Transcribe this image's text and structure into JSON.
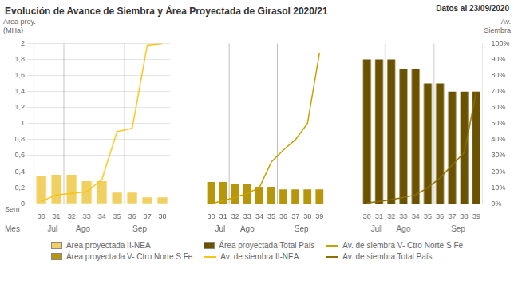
{
  "chart_data": [
    {
      "type": "bar",
      "title": "Evolución de Avance de Siembra y Área Proyectada de Girasol 2020/21",
      "subtitle": "Datos al 23/09/2020",
      "ylabel": "Área proy.\n(MHa)",
      "xlabel": "Sem",
      "categories": [
        30,
        31,
        32,
        33,
        34,
        35,
        36,
        37,
        38
      ],
      "series": [
        {
          "name": "Área proyectada II-NEA",
          "type": "bar",
          "color": "#f0d060",
          "values": [
            0.35,
            0.36,
            0.36,
            0.28,
            0.28,
            0.14,
            0.14,
            0.08,
            0.08
          ]
        },
        {
          "name": "Av. de siembra II-NEA",
          "type": "line",
          "color": "#f5c518",
          "values": [
            0.03,
            0.11,
            0.13,
            0.15,
            0.3,
            0.9,
            0.94,
            1.98,
            2.0
          ]
        }
      ],
      "ylim": [
        0,
        2.0
      ],
      "yticks": [
        0,
        {
          "value": 0.2,
          "label": "0,2"
        },
        {
          "value": 0.4,
          "label": "0,4"
        },
        {
          "value": 0.6,
          "label": "0,6"
        },
        {
          "value": 0.8,
          "label": "0,8"
        },
        1,
        {
          "value": 1.2,
          "label": "1,2"
        },
        {
          "value": 1.4,
          "label": "1,4"
        },
        {
          "value": 1.6,
          "label": "1,6"
        },
        {
          "value": 1.8,
          "label": "1,8"
        },
        2
      ],
      "grid": true,
      "legend": "bottom",
      "annotations": [
        {
          "text": "Mes"
        },
        {
          "text": "Jul",
          "x": 0.75
        },
        {
          "text": "Ago",
          "x": 2.75
        },
        {
          "text": "Sep",
          "x": 6.5
        },
        {
          "x": 1.5
        },
        {
          "x": 5.5
        }
      ]
    },
    {
      "type": "bar",
      "categories": [
        30,
        31,
        32,
        33,
        34,
        35,
        36,
        37,
        38,
        39
      ],
      "series": [
        {
          "name": "Área proyectada V- Ctro Norte S Fe",
          "type": "bar",
          "color": "#b8960c",
          "values": [
            0.27,
            0.27,
            0.25,
            0.25,
            0.21,
            0.21,
            0.18,
            0.18,
            0.18,
            0.18
          ]
        },
        {
          "name": "Av. de siembra V- Ctro Norte S Fe",
          "type": "line",
          "color": "#c8a000",
          "values": [
            0.0,
            0.04,
            0.08,
            0.13,
            0.2,
            0.52,
            0.67,
            0.8,
            1.0,
            1.88
          ]
        }
      ],
      "ylim": [
        0,
        2.0
      ],
      "grid": false,
      "tick_labels": "x",
      "annotations": [
        {
          "text": "Jul",
          "x": 0.75
        },
        {
          "text": "Ago",
          "x": 3.0
        },
        {
          "text": "Sep",
          "x": 7.5
        },
        {
          "x": 1.5
        },
        {
          "x": 5.5
        }
      ]
    },
    {
      "type": "bar",
      "y2label": "Av.\nSiembra",
      "categories": [
        30,
        31,
        32,
        33,
        34,
        35,
        36,
        37,
        38,
        39
      ],
      "series": [
        {
          "name": "Área proyectada Total País",
          "type": "bar",
          "color": "#6b5200",
          "values": [
            1.8,
            1.8,
            1.8,
            1.68,
            1.68,
            1.5,
            1.5,
            1.4,
            1.4,
            1.4
          ]
        },
        {
          "name": "Av. de siembra Total País",
          "type": "line",
          "color": "#8b7000",
          "values": [
            0.01,
            0.03,
            0.05,
            0.08,
            0.11,
            0.2,
            0.32,
            0.48,
            0.64,
            1.4
          ]
        }
      ],
      "ylim": [
        0,
        2.0
      ],
      "grid": false,
      "y2lim": [
        0,
        100
      ],
      "y2ticks": [
        {
          "value": 0,
          "label": "0%"
        },
        {
          "value": 10,
          "label": "10%"
        },
        {
          "value": 20,
          "label": "20%"
        },
        {
          "value": 30,
          "label": "30%"
        },
        {
          "value": 40,
          "label": "40%"
        },
        {
          "value": 50,
          "label": "50%"
        },
        {
          "value": 60,
          "label": "60%"
        },
        {
          "value": 70,
          "label": "70%"
        },
        {
          "value": 80,
          "label": "80%"
        },
        {
          "value": 90,
          "label": "90%"
        },
        {
          "value": 100,
          "label": "100%"
        }
      ],
      "annotations": [
        {
          "text": "Jul",
          "x": 0.75
        },
        {
          "text": "Ago",
          "x": 3.0
        },
        {
          "text": "Sep",
          "x": 7.5
        },
        {
          "x": 1.5
        },
        {
          "x": 5.5
        }
      ]
    }
  ]
}
